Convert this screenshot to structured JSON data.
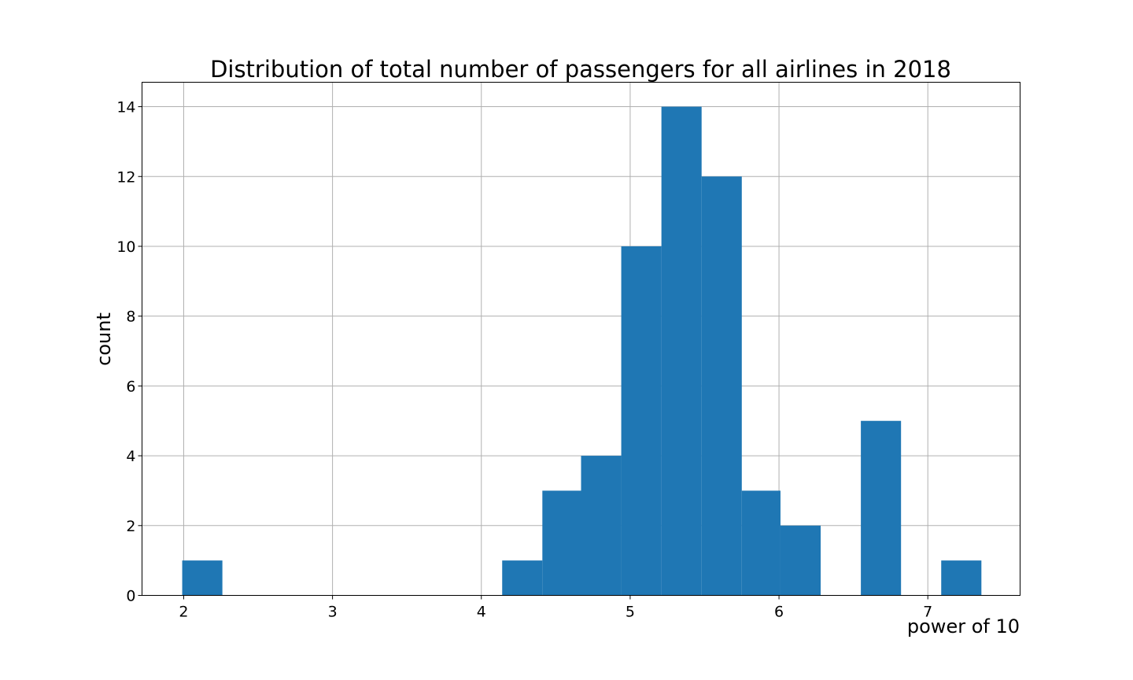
{
  "chart_data": {
    "type": "bar",
    "title": "Distribution of total number of passengers for all airlines in 2018",
    "xlabel": "power of 10",
    "ylabel": "count",
    "xlim": [
      1.72,
      7.62
    ],
    "ylim": [
      0,
      14.7
    ],
    "xticks": [
      2,
      3,
      4,
      5,
      6,
      7
    ],
    "yticks": [
      0,
      2,
      4,
      6,
      8,
      10,
      12,
      14
    ],
    "grid": true,
    "color": "#1f77b4",
    "bins": [
      {
        "x0": 1.99,
        "x1": 2.26,
        "count": 1
      },
      {
        "x0": 2.26,
        "x1": 2.53,
        "count": 0
      },
      {
        "x0": 2.53,
        "x1": 2.8,
        "count": 0
      },
      {
        "x0": 2.8,
        "x1": 3.06,
        "count": 0
      },
      {
        "x0": 3.06,
        "x1": 3.33,
        "count": 0
      },
      {
        "x0": 3.33,
        "x1": 3.6,
        "count": 0
      },
      {
        "x0": 3.6,
        "x1": 3.87,
        "count": 0
      },
      {
        "x0": 3.87,
        "x1": 4.14,
        "count": 0
      },
      {
        "x0": 4.14,
        "x1": 4.41,
        "count": 1
      },
      {
        "x0": 4.41,
        "x1": 4.67,
        "count": 3
      },
      {
        "x0": 4.67,
        "x1": 4.94,
        "count": 4
      },
      {
        "x0": 4.94,
        "x1": 5.21,
        "count": 10
      },
      {
        "x0": 5.21,
        "x1": 5.48,
        "count": 14
      },
      {
        "x0": 5.48,
        "x1": 5.75,
        "count": 12
      },
      {
        "x0": 5.75,
        "x1": 6.01,
        "count": 3
      },
      {
        "x0": 6.01,
        "x1": 6.28,
        "count": 2
      },
      {
        "x0": 6.28,
        "x1": 6.55,
        "count": 0
      },
      {
        "x0": 6.55,
        "x1": 6.82,
        "count": 5
      },
      {
        "x0": 6.82,
        "x1": 7.09,
        "count": 0
      },
      {
        "x0": 7.09,
        "x1": 7.36,
        "count": 1
      }
    ]
  }
}
